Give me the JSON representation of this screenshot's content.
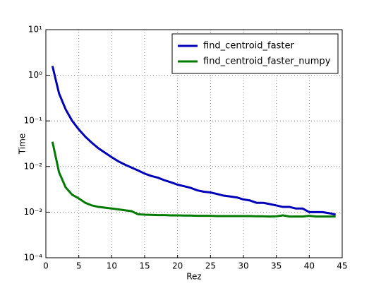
{
  "chart_data": {
    "type": "line",
    "xlabel": "Rez",
    "ylabel": "Time",
    "x": [
      1,
      2,
      3,
      4,
      5,
      6,
      7,
      8,
      9,
      10,
      11,
      12,
      13,
      14,
      15,
      16,
      17,
      18,
      19,
      20,
      21,
      22,
      23,
      24,
      25,
      26,
      27,
      28,
      29,
      30,
      31,
      32,
      33,
      34,
      35,
      36,
      37,
      38,
      39,
      40,
      41,
      42,
      43,
      44
    ],
    "series": [
      {
        "name": "find_centroid_faster",
        "color": "#0000b8",
        "values": [
          1.6,
          0.4,
          0.18,
          0.1,
          0.065,
          0.045,
          0.033,
          0.025,
          0.02,
          0.016,
          0.013,
          0.011,
          0.0095,
          0.0082,
          0.007,
          0.0062,
          0.0057,
          0.005,
          0.0045,
          0.004,
          0.0037,
          0.0034,
          0.003,
          0.0028,
          0.0027,
          0.0025,
          0.0023,
          0.0022,
          0.0021,
          0.0019,
          0.0018,
          0.0016,
          0.0016,
          0.0015,
          0.0014,
          0.0013,
          0.0013,
          0.0012,
          0.0012,
          0.001,
          0.001,
          0.001,
          0.00095,
          0.00088
        ]
      },
      {
        "name": "find_centroid_faster_numpy",
        "color": "#007a00",
        "values": [
          0.035,
          0.0075,
          0.0035,
          0.0024,
          0.002,
          0.0016,
          0.0014,
          0.0013,
          0.00125,
          0.0012,
          0.00115,
          0.0011,
          0.00105,
          0.0009,
          0.00088,
          0.00087,
          0.00086,
          0.00086,
          0.00085,
          0.00085,
          0.00084,
          0.00084,
          0.00083,
          0.00083,
          0.00083,
          0.00082,
          0.00082,
          0.00082,
          0.00082,
          0.00082,
          0.00082,
          0.00081,
          0.00081,
          0.0008,
          0.00081,
          0.00085,
          0.0008,
          0.0008,
          0.0008,
          0.00083,
          0.0008,
          0.0008,
          0.0008,
          0.0008
        ]
      }
    ],
    "xlim": [
      0,
      45
    ],
    "xticks": [
      0,
      5,
      10,
      15,
      20,
      25,
      30,
      35,
      40,
      45
    ],
    "ylim": [
      0.0001,
      10
    ],
    "log_y": true,
    "yticks": [
      {
        "value": 0.0001,
        "label": "10⁻⁴"
      },
      {
        "value": 0.001,
        "label": "10⁻³"
      },
      {
        "value": 0.01,
        "label": "10⁻²"
      },
      {
        "value": 0.1,
        "label": "10⁻¹"
      },
      {
        "value": 1,
        "label": "10⁰"
      },
      {
        "value": 10,
        "label": "10¹"
      }
    ],
    "grid": true,
    "legend": "upper-right"
  }
}
